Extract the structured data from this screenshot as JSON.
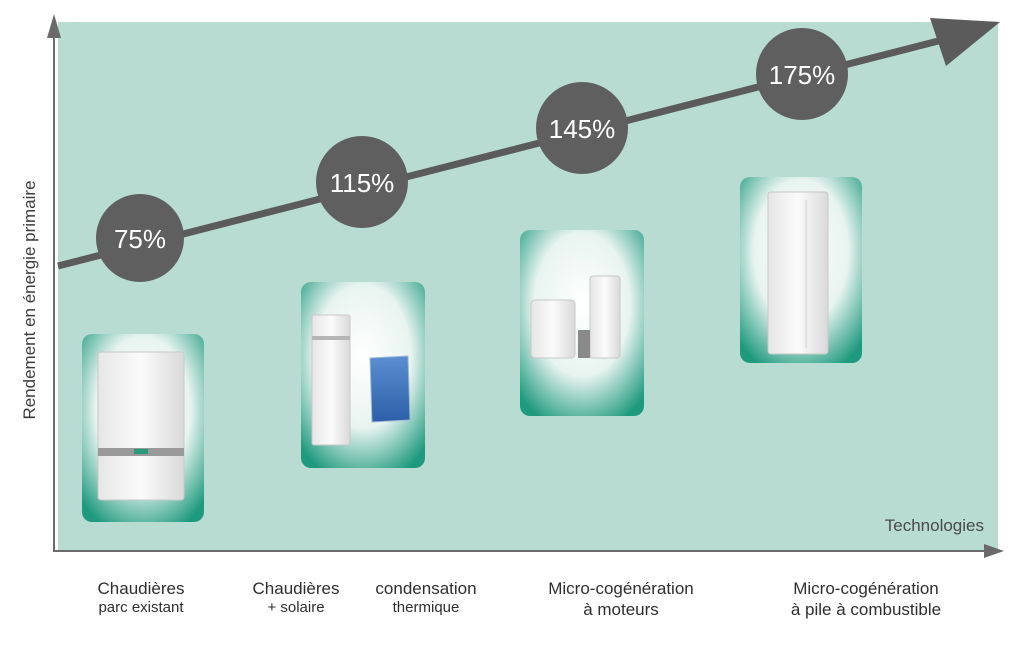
{
  "y_axis_label": "Rendement en énergie primaire",
  "x_axis_label": "Technologies",
  "colors": {
    "panel": "#b8dcd2",
    "arrow": "#5b5b5b",
    "bubble": "#5f5f5f",
    "bubble_text": "#ffffff",
    "axis": "#6a6a6a"
  },
  "stages": [
    {
      "value": "75%",
      "label_line1": "Chaudières",
      "label_line2": "parc existant",
      "icon": "wall-boiler-icon"
    },
    {
      "value": "115%",
      "label_line1": "Chaudières",
      "label_line2": "+ solaire",
      "icon": "condensing-boiler-solar-panel-icon"
    },
    {
      "value": "145%",
      "label_line1": "Micro-cogénération",
      "label_line2": "à moteurs",
      "icon": "micro-cogeneration-engine-icon"
    },
    {
      "value": "175%",
      "label_line1": "Micro-cogénération",
      "label_line2": "à pile à combustible",
      "icon": "fuel-cell-unit-icon"
    }
  ],
  "extra_label": {
    "line1": "condensation",
    "line2": "thermique"
  }
}
